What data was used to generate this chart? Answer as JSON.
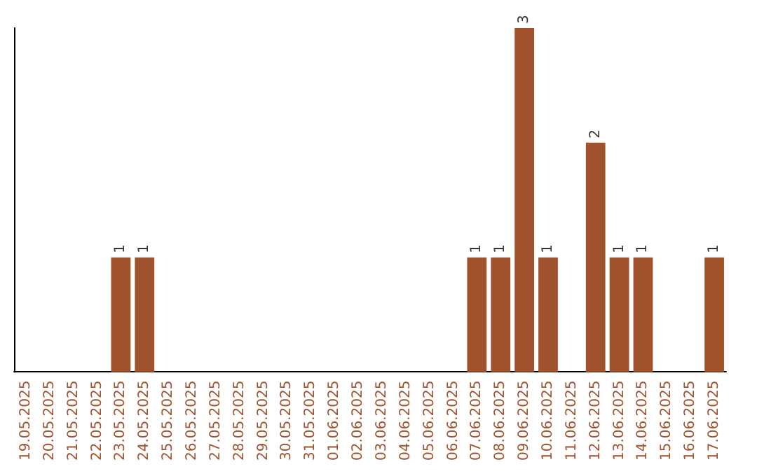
{
  "chart_data": {
    "type": "bar",
    "categories": [
      "19.05.2025",
      "20.05.2025",
      "21.05.2025",
      "22.05.2025",
      "23.05.2025",
      "24.05.2025",
      "25.05.2025",
      "26.05.2025",
      "27.05.2025",
      "28.05.2025",
      "29.05.2025",
      "30.05.2025",
      "31.05.2025",
      "01.06.2025",
      "02.06.2025",
      "03.06.2025",
      "04.06.2025",
      "05.06.2025",
      "06.06.2025",
      "07.06.2025",
      "08.06.2025",
      "09.06.2025",
      "10.06.2025",
      "11.06.2025",
      "12.06.2025",
      "13.06.2025",
      "14.06.2025",
      "15.06.2025",
      "16.06.2025",
      "17.06.2025"
    ],
    "values": [
      0,
      0,
      0,
      0,
      1,
      1,
      0,
      0,
      0,
      0,
      0,
      0,
      0,
      0,
      0,
      0,
      0,
      0,
      0,
      1,
      1,
      3,
      1,
      0,
      2,
      1,
      1,
      0,
      0,
      1
    ],
    "value_labels": [
      null,
      null,
      null,
      null,
      "1",
      "1",
      null,
      null,
      null,
      null,
      null,
      null,
      null,
      null,
      null,
      null,
      null,
      null,
      null,
      "1",
      "1",
      "3",
      "1",
      null,
      "2",
      "1",
      "1",
      null,
      null,
      "1"
    ],
    "color": "#a0522d",
    "ylim": [
      0,
      3
    ],
    "tick_labels": "x"
  }
}
